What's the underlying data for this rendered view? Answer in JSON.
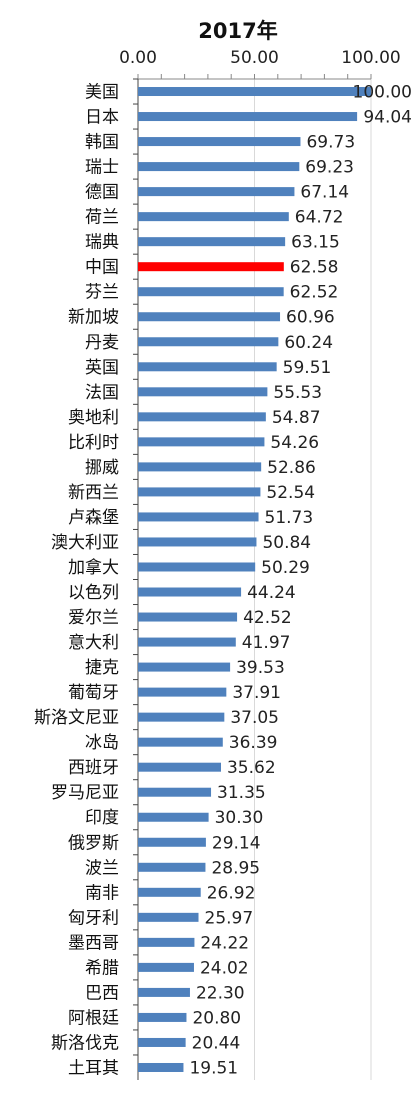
{
  "chart_data": {
    "type": "bar",
    "orientation": "horizontal",
    "title": "2017年",
    "xlim": [
      0,
      100
    ],
    "xticks": [
      0,
      50,
      100
    ],
    "tick_labels": [
      "0.00",
      "50.00",
      "100.00"
    ],
    "grid": true,
    "axis_position": "top",
    "colors": {
      "default": "#4f81bd",
      "highlight": "#ff0000"
    },
    "highlight_category": "中国",
    "categories": [
      "美国",
      "日本",
      "韩国",
      "瑞士",
      "德国",
      "荷兰",
      "瑞典",
      "中国",
      "芬兰",
      "新加坡",
      "丹麦",
      "英国",
      "法国",
      "奥地利",
      "比利时",
      "挪威",
      "新西兰",
      "卢森堡",
      "澳大利亚",
      "加拿大",
      "以色列",
      "爱尔兰",
      "意大利",
      "捷克",
      "葡萄牙",
      "斯洛文尼亚",
      "冰岛",
      "西班牙",
      "罗马尼亚",
      "印度",
      "俄罗斯",
      "波兰",
      "南非",
      "匈牙利",
      "墨西哥",
      "希腊",
      "巴西",
      "阿根廷",
      "斯洛伐克",
      "土耳其"
    ],
    "values": [
      100.0,
      94.04,
      69.73,
      69.23,
      67.14,
      64.72,
      63.15,
      62.58,
      62.52,
      60.96,
      60.24,
      59.51,
      55.53,
      54.87,
      54.26,
      52.86,
      52.54,
      51.73,
      50.84,
      50.29,
      44.24,
      42.52,
      41.97,
      39.53,
      37.91,
      37.05,
      36.39,
      35.62,
      31.35,
      30.3,
      29.14,
      28.95,
      26.92,
      25.97,
      24.22,
      24.02,
      22.3,
      20.8,
      20.44,
      19.51
    ],
    "value_labels": [
      "100.00",
      "94.04",
      "69.73",
      "69.23",
      "67.14",
      "64.72",
      "63.15",
      "62.58",
      "62.52",
      "60.96",
      "60.24",
      "59.51",
      "55.53",
      "54.87",
      "54.26",
      "52.86",
      "52.54",
      "51.73",
      "50.84",
      "50.29",
      "44.24",
      "42.52",
      "41.97",
      "39.53",
      "37.91",
      "37.05",
      "36.39",
      "35.62",
      "31.35",
      "30.30",
      "29.14",
      "28.95",
      "26.92",
      "25.97",
      "24.22",
      "24.02",
      "22.30",
      "20.80",
      "20.44",
      "19.51"
    ]
  }
}
